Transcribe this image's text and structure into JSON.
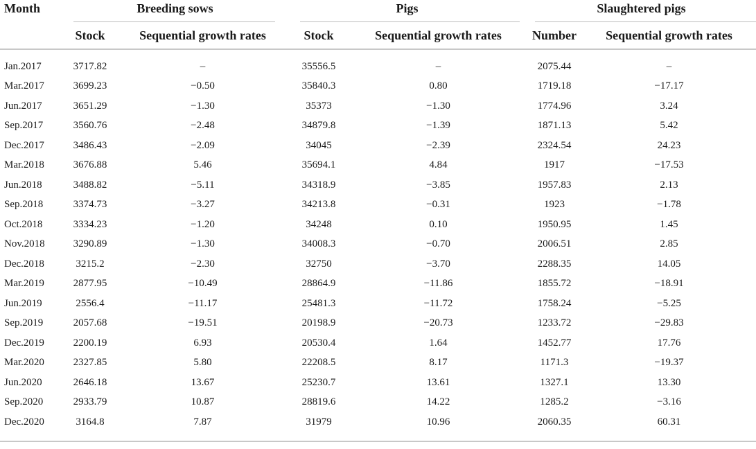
{
  "headers": {
    "month": "Month",
    "groups": [
      "Breeding sows",
      "Pigs",
      "Slaughtered pigs"
    ],
    "sub": [
      "Stock",
      "Sequential growth rates",
      "Stock",
      "Sequential growth rates",
      "Number",
      "Sequential growth rates"
    ]
  },
  "rows": [
    [
      "Jan.2017",
      "3717.82",
      "–",
      "35556.5",
      "–",
      "2075.44",
      "–"
    ],
    [
      "Mar.2017",
      "3699.23",
      "−0.50",
      "35840.3",
      "0.80",
      "1719.18",
      "−17.17"
    ],
    [
      "Jun.2017",
      "3651.29",
      "−1.30",
      "35373",
      "−1.30",
      "1774.96",
      "3.24"
    ],
    [
      "Sep.2017",
      "3560.76",
      "−2.48",
      "34879.8",
      "−1.39",
      "1871.13",
      "5.42"
    ],
    [
      "Dec.2017",
      "3486.43",
      "−2.09",
      "34045",
      "−2.39",
      "2324.54",
      "24.23"
    ],
    [
      "Mar.2018",
      "3676.88",
      "5.46",
      "35694.1",
      "4.84",
      "1917",
      "−17.53"
    ],
    [
      "Jun.2018",
      "3488.82",
      "−5.11",
      "34318.9",
      "−3.85",
      "1957.83",
      "2.13"
    ],
    [
      "Sep.2018",
      "3374.73",
      "−3.27",
      "34213.8",
      "−0.31",
      "1923",
      "−1.78"
    ],
    [
      "Oct.2018",
      "3334.23",
      "−1.20",
      "34248",
      "0.10",
      "1950.95",
      "1.45"
    ],
    [
      "Nov.2018",
      "3290.89",
      "−1.30",
      "34008.3",
      "−0.70",
      "2006.51",
      "2.85"
    ],
    [
      "Dec.2018",
      "3215.2",
      "−2.30",
      "32750",
      "−3.70",
      "2288.35",
      "14.05"
    ],
    [
      "Mar.2019",
      "2877.95",
      "−10.49",
      "28864.9",
      "−11.86",
      "1855.72",
      "−18.91"
    ],
    [
      "Jun.2019",
      "2556.4",
      "−11.17",
      "25481.3",
      "−11.72",
      "1758.24",
      "−5.25"
    ],
    [
      "Sep.2019",
      "2057.68",
      "−19.51",
      "20198.9",
      "−20.73",
      "1233.72",
      "−29.83"
    ],
    [
      "Dec.2019",
      "2200.19",
      "6.93",
      "20530.4",
      "1.64",
      "1452.77",
      "17.76"
    ],
    [
      "Mar.2020",
      "2327.85",
      "5.80",
      "22208.5",
      "8.17",
      "1171.3",
      "−19.37"
    ],
    [
      "Jun.2020",
      "2646.18",
      "13.67",
      "25230.7",
      "13.61",
      "1327.1",
      "13.30"
    ],
    [
      "Sep.2020",
      "2933.79",
      "10.87",
      "28819.6",
      "14.22",
      "1285.2",
      "−3.16"
    ],
    [
      "Dec.2020",
      "3164.8",
      "7.87",
      "31979",
      "10.96",
      "2060.35",
      "60.31"
    ]
  ]
}
